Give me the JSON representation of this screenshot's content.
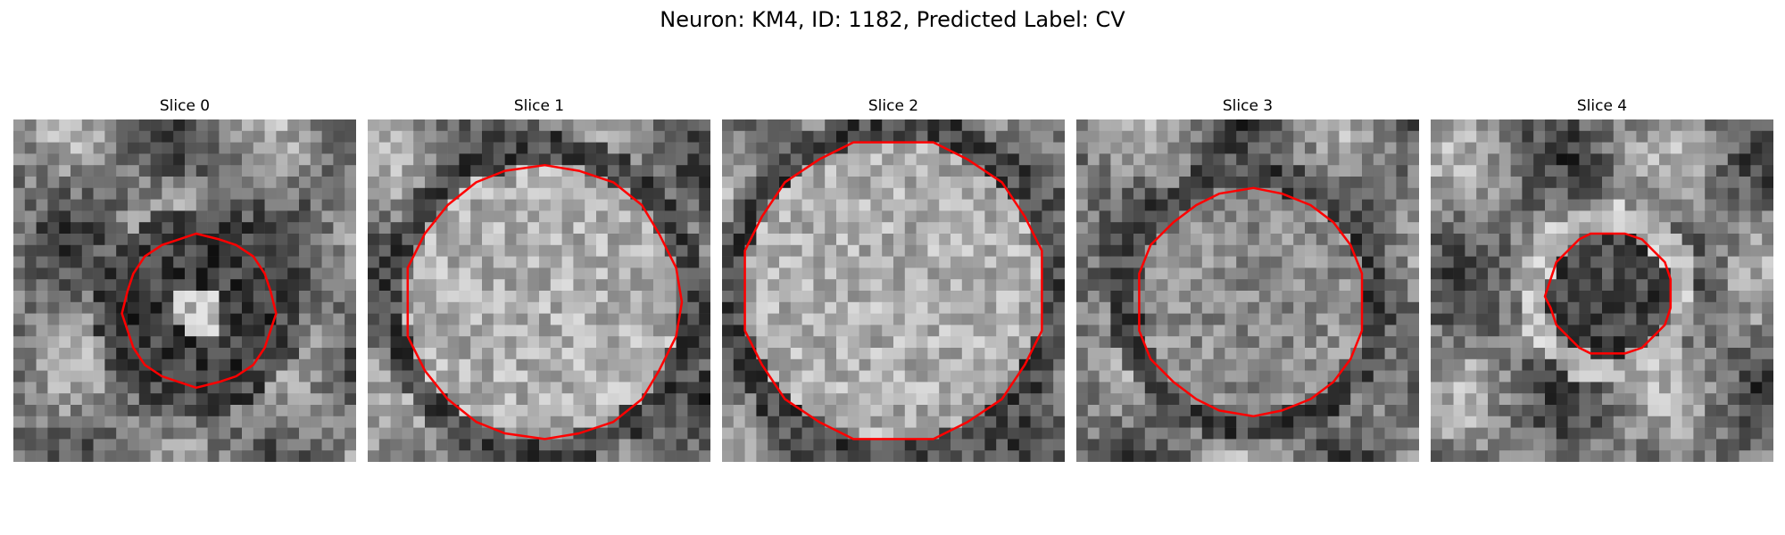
{
  "figure": {
    "title": "Neuron: KM4, ID: 1182, Predicted Label: CV",
    "contour_color": "#ff0000",
    "panels": [
      {
        "title": "Slice 0",
        "contour_radius": 0.22,
        "center": [
          0.54,
          0.56
        ],
        "interior": "dark_with_bright_spot"
      },
      {
        "title": "Slice 1",
        "contour_radius": 0.4,
        "center": [
          0.51,
          0.53
        ],
        "interior": "bright"
      },
      {
        "title": "Slice 2",
        "contour_radius": 0.44,
        "center": [
          0.5,
          0.5
        ],
        "interior": "bright"
      },
      {
        "title": "Slice 3",
        "contour_radius": 0.33,
        "center": [
          0.51,
          0.53
        ],
        "interior": "mid"
      },
      {
        "title": "Slice 4",
        "contour_radius": 0.18,
        "center": [
          0.52,
          0.51
        ],
        "interior": "dark"
      }
    ]
  }
}
